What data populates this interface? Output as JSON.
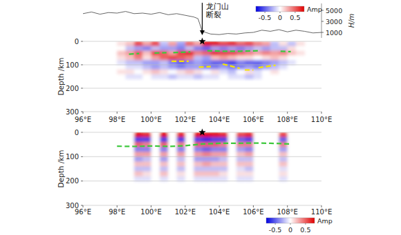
{
  "chart_data": [
    {
      "type": "heatmap",
      "y_label": "Depth /km",
      "xlim": [
        96,
        110
      ],
      "ylim": [
        300,
        0
      ],
      "xticks": [
        {
          "value": 96,
          "label": "96°E"
        },
        {
          "value": 98,
          "label": "98°E"
        },
        {
          "value": 100,
          "label": "100°E"
        },
        {
          "value": 102,
          "label": "102°E"
        },
        {
          "value": 104,
          "label": "104°E"
        },
        {
          "value": 106,
          "label": "106°E"
        },
        {
          "value": 108,
          "label": "108°E"
        },
        {
          "value": 110,
          "label": "110°E"
        }
      ],
      "yticks": [
        0,
        100,
        200,
        300
      ],
      "grid": true,
      "cells": {
        "x": [
          98.25,
          98.75,
          99.25,
          99.75,
          100.25,
          100.75,
          101.25,
          101.75,
          102.25,
          102.75,
          103.25,
          103.75,
          104.25,
          104.75,
          105.25,
          105.75,
          106.25,
          106.75,
          107.25,
          107.75,
          108.25,
          108.75
        ],
        "y": [
          10,
          30,
          50,
          70,
          90,
          110,
          130,
          150
        ],
        "values": [
          [
            0.1,
            0.2,
            0.6,
            0.3,
            0.6,
            -0.2,
            0.3,
            -0.3,
            0.5,
            0.3,
            0.8,
            0.8,
            0.6,
            0.7,
            0.5,
            0.6,
            0.4,
            0.3,
            -0.2,
            0.1,
            -0.2,
            0.1
          ],
          [
            0,
            -0.2,
            -0.3,
            -0.4,
            -0.2,
            -0.3,
            -0.3,
            -0.4,
            -0.2,
            -0.4,
            -0.5,
            -0.3,
            -0.4,
            -0.3,
            -0.4,
            -0.3,
            -0.2,
            -0.3,
            -0.2,
            -0.2,
            0.1,
            0
          ],
          [
            0.2,
            0.3,
            0.5,
            0.2,
            0.6,
            0.5,
            0.3,
            0.6,
            0.7,
            0.4,
            0.5,
            0.7,
            0.6,
            0.6,
            0.5,
            0.4,
            0.3,
            0.4,
            0.3,
            0.4,
            0.2,
            0.1
          ],
          [
            0.1,
            0.2,
            0.4,
            0.1,
            0.3,
            0.5,
            0.6,
            0.5,
            0.4,
            -0.2,
            -0.3,
            0.2,
            0.3,
            0.2,
            0.1,
            0.1,
            0,
            0.1,
            0.2,
            0.1,
            0,
            0
          ],
          [
            -0.1,
            -0.2,
            -0.2,
            -0.3,
            -0.3,
            -0.2,
            -0.4,
            -0.5,
            -0.4,
            -0.3,
            -0.4,
            -0.5,
            -0.5,
            -0.6,
            -0.4,
            -0.5,
            -0.5,
            -0.4,
            -0.3,
            -0.2,
            -0.1,
            0
          ],
          [
            0,
            -0.1,
            -0.1,
            -0.2,
            -0.3,
            -0.2,
            -0.3,
            -0.4,
            -0.3,
            -0.3,
            -0.4,
            -0.4,
            -0.3,
            -0.4,
            -0.4,
            -0.3,
            -0.4,
            -0.3,
            -0.2,
            -0.1,
            0,
            0
          ],
          [
            0.1,
            0.1,
            0,
            0.1,
            0.2,
            0.1,
            0,
            0.1,
            0.2,
            0.1,
            0,
            0.1,
            -0.1,
            -0.2,
            0,
            0.1,
            -0.1,
            0,
            0.1,
            0,
            0,
            0
          ],
          [
            0,
            -0.1,
            -0.1,
            0,
            -0.1,
            -0.1,
            -0.2,
            -0.1,
            -0.1,
            -0.2,
            -0.1,
            -0.1,
            0,
            -0.1,
            -0.1,
            -0.2,
            -0.1,
            0,
            0,
            0,
            0,
            0
          ]
        ]
      },
      "clim": [
        -0.8,
        0.8
      ],
      "cticks": [
        -0.5,
        0,
        0.5
      ],
      "colorbar_label": "Amp",
      "legend": "top-right",
      "y2lim": [
        0,
        6250
      ],
      "y2ticks": [
        1000,
        3000,
        5000
      ],
      "y2_label": "H/m",
      "series": [
        {
          "type": "line",
          "color": "#3cc83c",
          "line_style": "dashed",
          "x": [
            98.7,
            99.3,
            null,
            100.2,
            100.9,
            null,
            101.3,
            102.3,
            null,
            103.3,
            104.2,
            105.2,
            106.3,
            null,
            107.6,
            108.2
          ],
          "values": [
            55,
            52,
            null,
            50,
            48,
            null,
            48,
            45,
            null,
            40,
            42,
            42,
            40,
            null,
            42,
            44
          ]
        },
        {
          "type": "line",
          "color": "#f5e600",
          "line_style": "dashed",
          "x": [
            101.2,
            102.2,
            null,
            102.8,
            103.5,
            null,
            104.2,
            105.2,
            null,
            105.5,
            106.0,
            null,
            106.3,
            107.3
          ],
          "values": [
            85,
            85,
            null,
            110,
            108,
            null,
            97,
            115,
            null,
            122,
            122,
            null,
            112,
            102
          ]
        },
        {
          "type": "line",
          "axis": "y2",
          "color": "#555555",
          "line_style": "solid",
          "x": [
            96,
            96.5,
            97,
            97.5,
            98,
            98.5,
            99,
            99.5,
            100,
            100.5,
            101,
            101.5,
            102,
            102.5,
            102.75,
            103,
            103.5,
            104,
            104.5,
            105,
            105.5,
            106,
            106.5,
            107,
            107.5,
            108,
            108.5,
            109,
            109.5,
            110
          ],
          "values": [
            4400,
            4700,
            4300,
            4600,
            4500,
            4800,
            4400,
            4500,
            4300,
            4600,
            4200,
            4400,
            4100,
            3800,
            3500,
            1200,
            700,
            600,
            800,
            700,
            900,
            1000,
            1400,
            1200,
            1500,
            1100,
            1400,
            1200,
            900,
            1000
          ]
        },
        {
          "type": "scatter",
          "marker": "star",
          "color": "#000000",
          "x": [
            103
          ],
          "values": [
            0
          ]
        }
      ],
      "annotations": [
        {
          "text_lines": [
            "龙门山",
            "断裂"
          ],
          "x": 103
        }
      ]
    },
    {
      "type": "heatmap",
      "y_label": "Depth /km",
      "xlim": [
        96,
        110
      ],
      "ylim": [
        300,
        0
      ],
      "xticks": [
        {
          "value": 96,
          "label": "96°E"
        },
        {
          "value": 98,
          "label": "98°E"
        },
        {
          "value": 100,
          "label": "100°E"
        },
        {
          "value": 102,
          "label": "102°E"
        },
        {
          "value": 104,
          "label": "104°E"
        },
        {
          "value": 106,
          "label": "106°E"
        },
        {
          "value": 108,
          "label": "108°E"
        },
        {
          "value": 110,
          "label": "110°E"
        }
      ],
      "yticks": [
        0,
        100,
        200,
        300
      ],
      "grid": true,
      "cells": {
        "x": [
          98.25,
          98.75,
          99.25,
          99.75,
          100.25,
          100.75,
          101.25,
          101.75,
          102.25,
          102.75,
          103.25,
          103.75,
          104.25,
          104.75,
          105.25,
          105.75,
          106.25,
          106.75,
          107.25,
          107.75,
          108.25,
          108.75
        ],
        "y": [
          10,
          30,
          50,
          70,
          90,
          110,
          130,
          150,
          170,
          190
        ],
        "values": [
          [
            0,
            0,
            0.8,
            0.7,
            0,
            0.8,
            0,
            0.7,
            0,
            0.8,
            0.9,
            0.8,
            0.7,
            0,
            0.6,
            0.7,
            0,
            0,
            0,
            0.6,
            0,
            0
          ],
          [
            0,
            0,
            -0.6,
            -0.6,
            0,
            -0.6,
            0,
            -0.6,
            0,
            -0.6,
            -0.7,
            -0.6,
            -0.6,
            0,
            -0.5,
            -0.6,
            0,
            0,
            0,
            -0.5,
            0,
            0
          ],
          [
            0,
            0,
            0.5,
            0.4,
            0,
            0.5,
            0,
            0.4,
            0,
            0.5,
            0.5,
            0.5,
            0.4,
            0,
            0.4,
            0.4,
            0,
            0,
            0,
            0.4,
            0,
            0
          ],
          [
            0,
            0,
            -0.4,
            -0.4,
            0,
            -0.4,
            0,
            -0.4,
            0,
            -0.4,
            -0.5,
            -0.4,
            -0.4,
            0,
            -0.3,
            -0.4,
            0,
            0,
            0,
            -0.3,
            0,
            0
          ],
          [
            0,
            0,
            0.3,
            0.3,
            0,
            0.3,
            0,
            0.3,
            0,
            0.3,
            0.4,
            0.3,
            0.3,
            0,
            0.2,
            0.3,
            0,
            0,
            0,
            0.2,
            0,
            0
          ],
          [
            0,
            0,
            -0.3,
            -0.2,
            0,
            -0.3,
            0,
            -0.2,
            0,
            -0.3,
            -0.3,
            -0.3,
            -0.2,
            0,
            -0.2,
            -0.2,
            0,
            0,
            0,
            -0.2,
            0,
            0
          ],
          [
            0,
            0,
            0.2,
            0.2,
            0,
            0.2,
            0,
            0.2,
            0,
            0.2,
            0.3,
            0.2,
            0.2,
            0,
            0.2,
            0.2,
            0,
            0,
            0,
            0.2,
            0,
            0
          ],
          [
            0,
            0,
            -0.2,
            -0.2,
            0,
            -0.2,
            0,
            -0.2,
            0,
            -0.2,
            -0.2,
            -0.2,
            -0.2,
            0,
            -0.1,
            -0.2,
            0,
            0,
            0,
            -0.1,
            0,
            0
          ],
          [
            0,
            0,
            0.2,
            0.1,
            0,
            0.2,
            0,
            0.1,
            0,
            0.2,
            0.2,
            0.2,
            0.1,
            0,
            0.1,
            0.1,
            0,
            0,
            0,
            0.1,
            0,
            0
          ],
          [
            0,
            0,
            -0.1,
            -0.1,
            0,
            -0.1,
            0,
            -0.1,
            0,
            -0.1,
            -0.1,
            -0.1,
            -0.1,
            0,
            -0.1,
            -0.1,
            0,
            0,
            0,
            -0.1,
            0,
            0
          ]
        ]
      },
      "clim": [
        -0.8,
        0.8
      ],
      "cticks": [
        -0.5,
        0,
        0.5
      ],
      "colorbar_label": "Amp",
      "legend": "bottom-right",
      "series": [
        {
          "type": "line",
          "color": "#3cc83c",
          "line_style": "dashed",
          "x": [
            98,
            99,
            100,
            101,
            102,
            103,
            104,
            105,
            106,
            107,
            108.2
          ],
          "values": [
            57,
            58,
            56,
            58,
            55,
            48,
            45,
            45,
            44,
            45,
            48
          ]
        },
        {
          "type": "scatter",
          "marker": "star",
          "color": "#000000",
          "x": [
            103
          ],
          "values": [
            0
          ]
        }
      ]
    }
  ]
}
